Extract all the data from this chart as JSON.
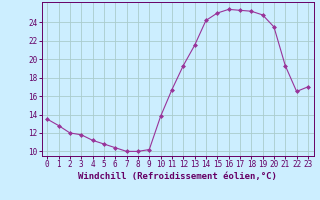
{
  "x": [
    0,
    1,
    2,
    3,
    4,
    5,
    6,
    7,
    8,
    9,
    10,
    11,
    12,
    13,
    14,
    15,
    16,
    17,
    18,
    19,
    20,
    21,
    22,
    23
  ],
  "y": [
    13.5,
    12.8,
    12.0,
    11.8,
    11.2,
    10.8,
    10.4,
    10.0,
    10.0,
    10.2,
    13.8,
    16.7,
    19.3,
    21.5,
    24.2,
    25.0,
    25.4,
    25.3,
    25.2,
    24.8,
    23.5,
    19.3,
    16.5,
    17.0
  ],
  "line_color": "#993399",
  "marker": "D",
  "marker_size": 2,
  "bg_color": "#cceeff",
  "grid_color": "#aacccc",
  "xlabel": "Windchill (Refroidissement éolien,°C)",
  "ylabel": "",
  "title": "",
  "xlim": [
    -0.5,
    23.5
  ],
  "ylim": [
    9.5,
    26.2
  ],
  "yticks": [
    10,
    12,
    14,
    16,
    18,
    20,
    22,
    24
  ],
  "xticks": [
    0,
    1,
    2,
    3,
    4,
    5,
    6,
    7,
    8,
    9,
    10,
    11,
    12,
    13,
    14,
    15,
    16,
    17,
    18,
    19,
    20,
    21,
    22,
    23
  ],
  "font_color": "#660066",
  "tick_fontsize": 5.5,
  "xlabel_fontsize": 6.5
}
